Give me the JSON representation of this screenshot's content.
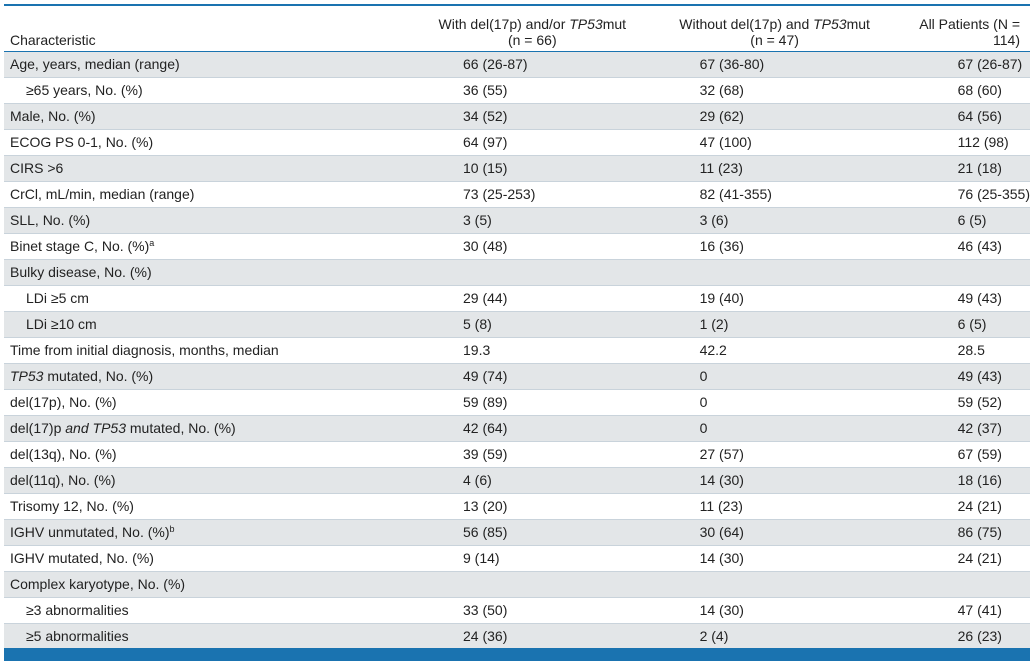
{
  "header": {
    "col0": "Characteristic",
    "col1_a": "With del(17p) and/or ",
    "col1_i": "TP53",
    "col1_b": "mut",
    "col1_n": "(n = 66)",
    "col2_a": "Without del(17p) and ",
    "col2_i": "TP53",
    "col2_b": "mut",
    "col2_n": "(n = 47)",
    "col3": "All Patients (N = 114)"
  },
  "rows": [
    {
      "label": "Age, years, median (range)",
      "c1": "66 (26-87)",
      "c2": "67 (36-80)",
      "c3": "67 (26-87)"
    },
    {
      "label": "≥65 years, No. (%)",
      "c1": "36 (55)",
      "c2": "32 (68)",
      "c3": "68 (60)"
    },
    {
      "label": "Male, No. (%)",
      "c1": "34 (52)",
      "c2": "29 (62)",
      "c3": "64 (56)"
    },
    {
      "label": "ECOG PS 0-1, No. (%)",
      "c1": "64 (97)",
      "c2": "47 (100)",
      "c3": "112 (98)"
    },
    {
      "label": "CIRS >6",
      "c1": "10 (15)",
      "c2": "11 (23)",
      "c3": "21 (18)"
    },
    {
      "label": "CrCl, mL/min, median (range)",
      "c1": "73 (25-253)",
      "c2": "82 (41-355)",
      "c3": "76 (25-355)"
    },
    {
      "label": "SLL, No. (%)",
      "c1": "3 (5)",
      "c2": "3 (6)",
      "c3": "6 (5)"
    },
    {
      "label": "Binet stage C, No. (%)",
      "sup": "a",
      "c1": "30 (48)",
      "c2": "16 (36)",
      "c3": "46 (43)"
    },
    {
      "label": "Bulky disease, No. (%)",
      "c1": "",
      "c2": "",
      "c3": ""
    },
    {
      "label": "LDi ≥5 cm",
      "c1": "29 (44)",
      "c2": "19 (40)",
      "c3": "49 (43)"
    },
    {
      "label": "LDi ≥10 cm",
      "c1": "5 (8)",
      "c2": "1 (2)",
      "c3": "6 (5)"
    },
    {
      "label": "Time from initial diagnosis, months, median",
      "c1": "19.3",
      "c2": "42.2",
      "c3": "28.5"
    },
    {
      "label_i": "TP53",
      "label_rest": " mutated, No. (%)",
      "c1": "49 (74)",
      "c2": "0",
      "c3": "49 (43)"
    },
    {
      "label": "del(17p), No. (%)",
      "c1": "59 (89)",
      "c2": "0",
      "c3": "59 (52)"
    },
    {
      "label_a": "del(17)p ",
      "label_i2": "and TP53",
      "label_rest": " mutated, No. (%)",
      "c1": "42 (64)",
      "c2": "0",
      "c3": "42 (37)"
    },
    {
      "label": "del(13q), No. (%)",
      "c1": "39 (59)",
      "c2": "27 (57)",
      "c3": "67 (59)"
    },
    {
      "label": "del(11q), No. (%)",
      "c1": "4 (6)",
      "c2": "14 (30)",
      "c3": "18 (16)"
    },
    {
      "label": "Trisomy 12, No. (%)",
      "c1": "13 (20)",
      "c2": "11 (23)",
      "c3": "24 (21)"
    },
    {
      "label": "IGHV unmutated, No. (%)",
      "sup": "b",
      "c1": "56 (85)",
      "c2": "30 (64)",
      "c3": "86 (75)"
    },
    {
      "label": "IGHV mutated, No. (%)",
      "c1": "9 (14)",
      "c2": "14 (30)",
      "c3": "24 (21)"
    },
    {
      "label": "Complex karyotype, No. (%)",
      "c1": "",
      "c2": "",
      "c3": ""
    },
    {
      "label": "≥3 abnormalities",
      "c1": "33 (50)",
      "c2": "14 (30)",
      "c3": "47 (41)"
    },
    {
      "label": "≥5 abnormalities",
      "c1": "24 (36)",
      "c2": "2 (4)",
      "c3": "26 (23)"
    }
  ],
  "colors": {
    "accent": "#1a73b0",
    "shade": "#e3e6e8"
  }
}
